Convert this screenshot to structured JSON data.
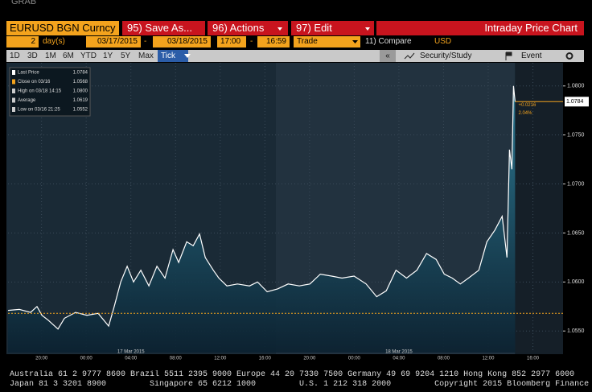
{
  "header": {
    "app_label": "GRAB"
  },
  "toolbar": {
    "security": "EURUSD BGN Curncy",
    "menus": [
      "95) Save As...",
      "96) Actions",
      "97) Edit"
    ],
    "title": "Intraday Price Chart"
  },
  "params": {
    "period": "2",
    "period_unit": "day(s)",
    "start_date": "03/17/2015",
    "date_sep": "-",
    "end_date": "03/18/2015",
    "start_time": "17:00",
    "time_sep": "-",
    "end_time": "16:59",
    "field": "Trade",
    "compare": "11) Compare",
    "currency": "USD"
  },
  "ranges": [
    "1D",
    "3D",
    "1M",
    "6M",
    "YTD",
    "1Y",
    "5Y",
    "Max",
    "Tick"
  ],
  "right_tools": {
    "back": "«",
    "study": "Security/Study",
    "event": "Event"
  },
  "footer": [
    "Australia 61 2 9777 8600 Brazil 5511 2395 9000 Europe 44 20 7330 7500 Germany 49 69 9204 1210 Hong Kong 852 2977 6000",
    "Japan 81 3 3201 8900         Singapore 65 6212 1000         U.S. 1 212 318 2000         Copyright 2015 Bloomberg Finance L.P."
  ],
  "chart_data": {
    "type": "line",
    "x": [
      0,
      1.01,
      2.02,
      2.59,
      3.03,
      3.6,
      4.47,
      5.05,
      6.05,
      7.06,
      8.07,
      9.01,
      9.51,
      10.09,
      10.67,
      11.24,
      11.89,
      12.61,
      13.33,
      14.05,
      14.77,
      15.28,
      16.0,
      16.58,
      17.15,
      17.66,
      18.38,
      18.88,
      19.6,
      20.54,
      21.62,
      22.34,
      23.21,
      24.14,
      25.08,
      26.09,
      27.03,
      27.96,
      28.97,
      29.91,
      30.99,
      32.07,
      33.01,
      33.87,
      34.74,
      35.68,
      36.61,
      37.48,
      38.34,
      39.06,
      39.78,
      40.5,
      41.23,
      42.16,
      42.88,
      43.6,
      44.25,
      44.68,
      44.9,
      45.12,
      45.26,
      45.41
    ],
    "series": [
      {
        "name": "Last Price",
        "color": "#ffffff",
        "values": [
          1.0571,
          1.0572,
          1.0569,
          1.0575,
          1.0566,
          1.0561,
          1.0552,
          1.0563,
          1.0569,
          1.0566,
          1.0568,
          1.0555,
          1.0575,
          1.06,
          1.0616,
          1.06,
          1.0612,
          1.0596,
          1.0616,
          1.0604,
          1.0633,
          1.062,
          1.0641,
          1.0637,
          1.0649,
          1.0625,
          1.0612,
          1.0604,
          1.0596,
          1.0598,
          1.0596,
          1.06,
          1.059,
          1.0593,
          1.0598,
          1.0596,
          1.0598,
          1.0608,
          1.0606,
          1.0604,
          1.0606,
          1.0598,
          1.0585,
          1.0591,
          1.0612,
          1.0604,
          1.0612,
          1.0629,
          1.0623,
          1.0608,
          1.0604,
          1.0598,
          1.0604,
          1.0612,
          1.0641,
          1.0653,
          1.0667,
          1.0625,
          1.0735,
          1.0715,
          1.08,
          1.0784
        ]
      }
    ],
    "xlim": [
      0,
      49.7
    ],
    "xticks": [
      {
        "value": 3,
        "label": "20:00"
      },
      {
        "value": 7,
        "label": "00:00"
      },
      {
        "value": 11,
        "label": "04:00"
      },
      {
        "value": 15,
        "label": "08:00"
      },
      {
        "value": 19,
        "label": "12:00"
      },
      {
        "value": 23,
        "label": "16:00"
      },
      {
        "value": 27,
        "label": "20:00"
      },
      {
        "value": 31,
        "label": "00:00"
      },
      {
        "value": 35,
        "label": "04:00"
      },
      {
        "value": 39,
        "label": "08:00"
      },
      {
        "value": 43,
        "label": "12:00"
      },
      {
        "value": 47,
        "label": "16:00"
      }
    ],
    "date_ticks": [
      {
        "value": 11,
        "label": "17 Mar 2015"
      },
      {
        "value": 35,
        "label": "18 Mar 2015"
      }
    ],
    "ylim": [
      1.0528,
      1.0822
    ],
    "yticks": [
      {
        "value": 1.055,
        "label": "1.0550"
      },
      {
        "value": 1.06,
        "label": "1.0600"
      },
      {
        "value": 1.065,
        "label": "1.0650"
      },
      {
        "value": 1.07,
        "label": "1.0700"
      },
      {
        "value": 1.075,
        "label": "1.0750"
      },
      {
        "value": 1.08,
        "label": "1.0800"
      }
    ],
    "legend": [
      {
        "name": "Last Price",
        "value": 1.0784,
        "label": "1.0784"
      },
      {
        "name": "Close on 03/16",
        "value": 1.0568,
        "label": "1.0568"
      },
      {
        "name": "High on 03/18 14:15",
        "value": 1.08,
        "label": "1.0800"
      },
      {
        "name": "Average",
        "value": 1.0619,
        "label": "1.0619"
      },
      {
        "name": "Low on 03/16 21:25",
        "value": 1.0552,
        "label": "1.0552"
      }
    ],
    "change": "+0.0216",
    "change_pct": "2.04%",
    "grid": true
  }
}
